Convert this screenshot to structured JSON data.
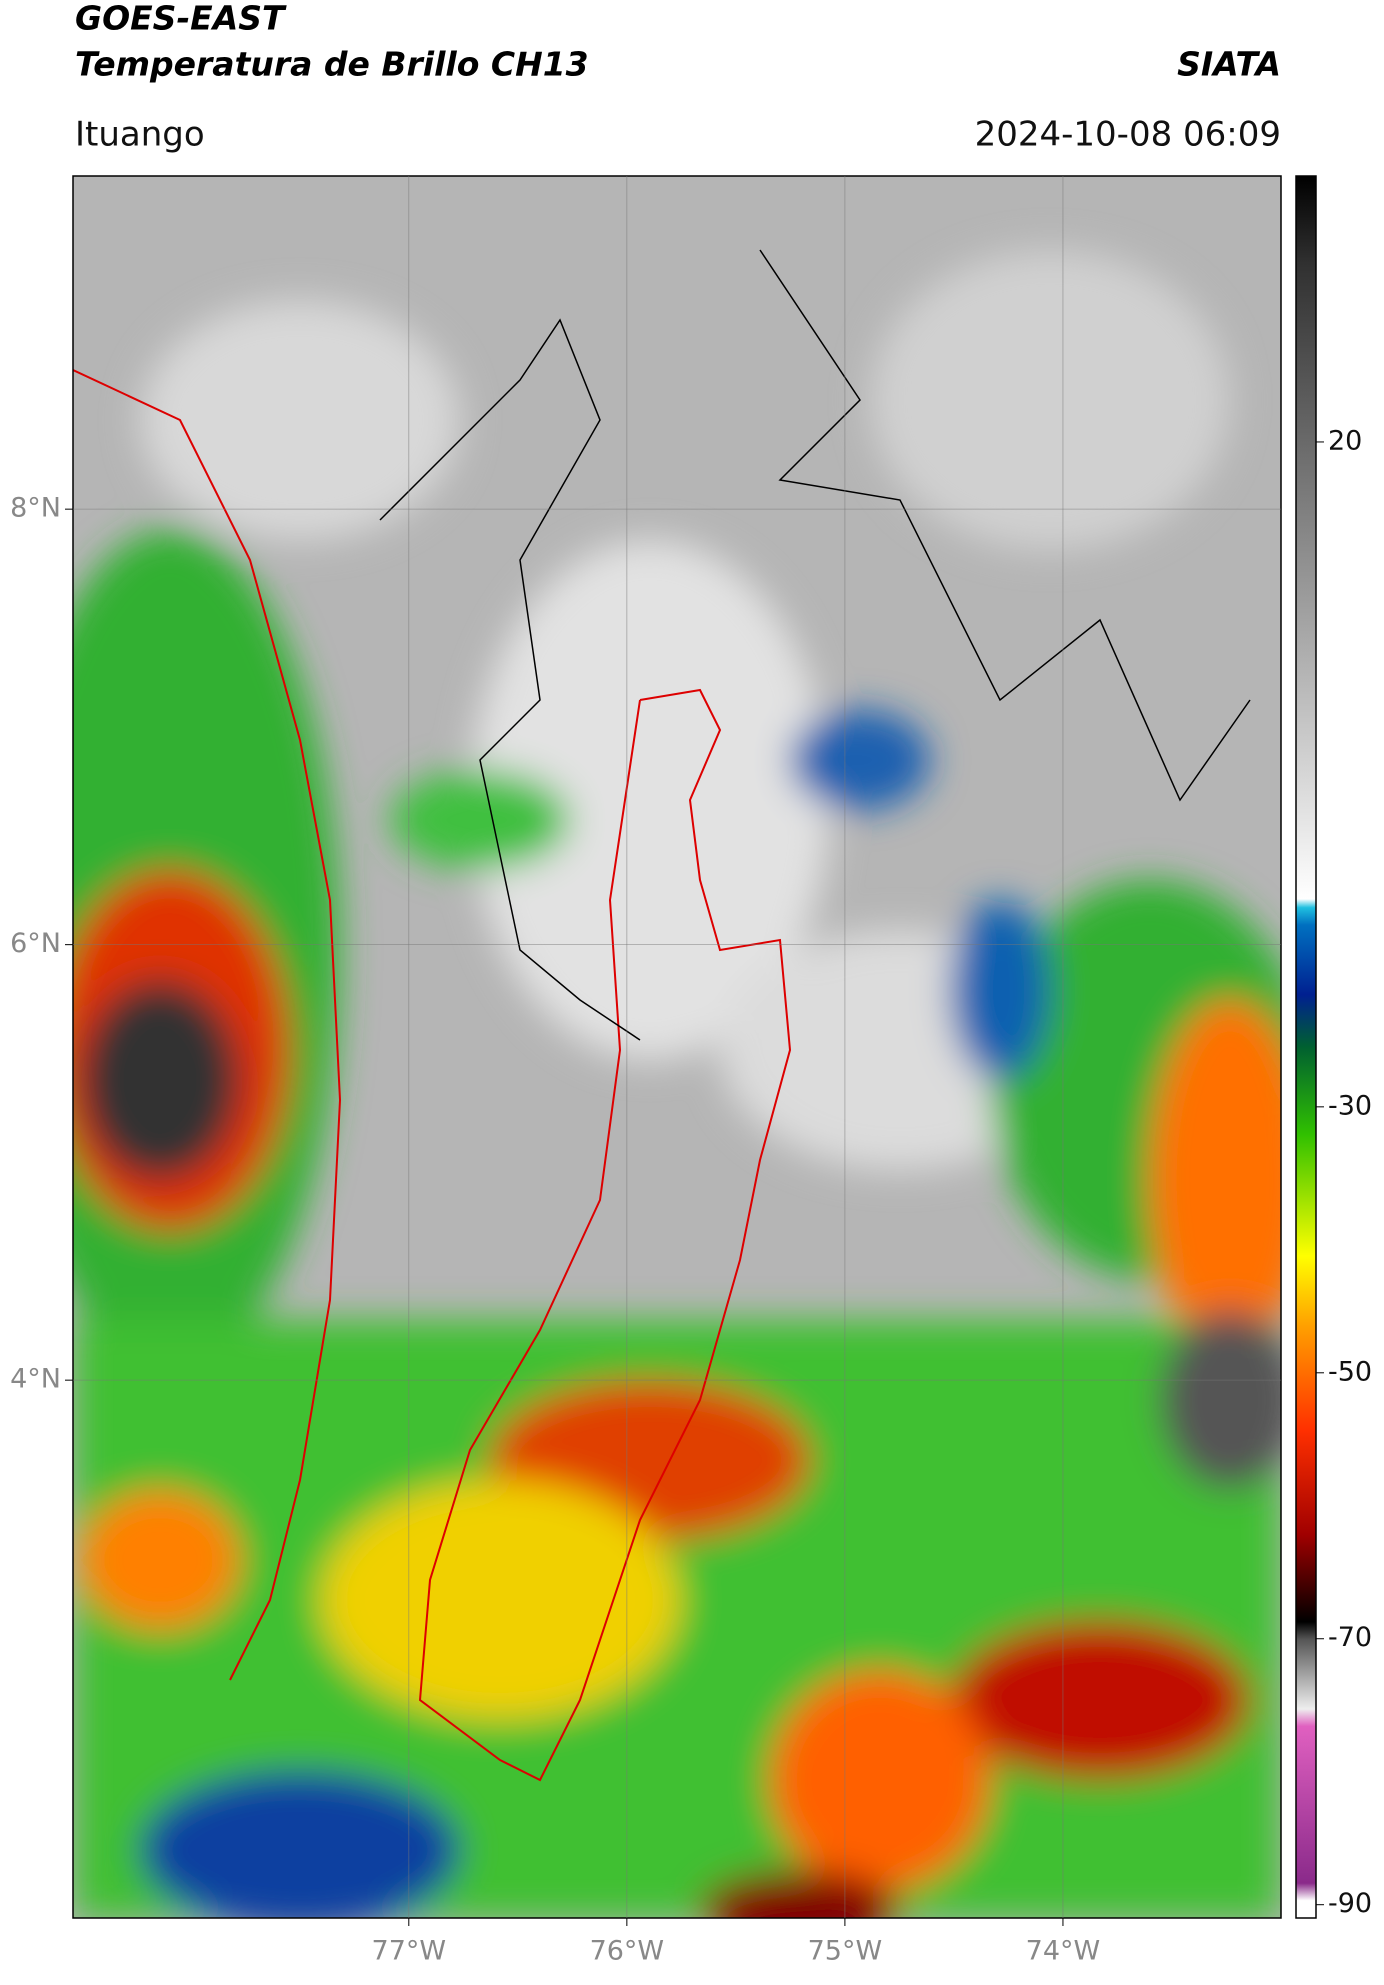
{
  "header": {
    "title_line1": "GOES-EAST",
    "title_line2": "Temperatura de Brillo CH13",
    "source": "SIATA",
    "location": "Ituango",
    "datetime": "2024-10-08 06:09"
  },
  "map": {
    "xlim": [
      -78.54,
      -73.0
    ],
    "ylim": [
      1.53,
      9.53
    ],
    "xticks": [
      {
        "value": -77,
        "label": "77°W"
      },
      {
        "value": -76,
        "label": "76°W"
      },
      {
        "value": -75,
        "label": "75°W"
      },
      {
        "value": -74,
        "label": "74°W"
      }
    ],
    "yticks": [
      {
        "value": 4,
        "label": "4°N"
      },
      {
        "value": 6,
        "label": "6°N"
      },
      {
        "value": 8,
        "label": "8°N"
      }
    ],
    "grid": true
  },
  "colorbar": {
    "lim": [
      -91,
      40
    ],
    "ticks": [
      20,
      -30,
      -50,
      -70,
      -90
    ]
  }
}
